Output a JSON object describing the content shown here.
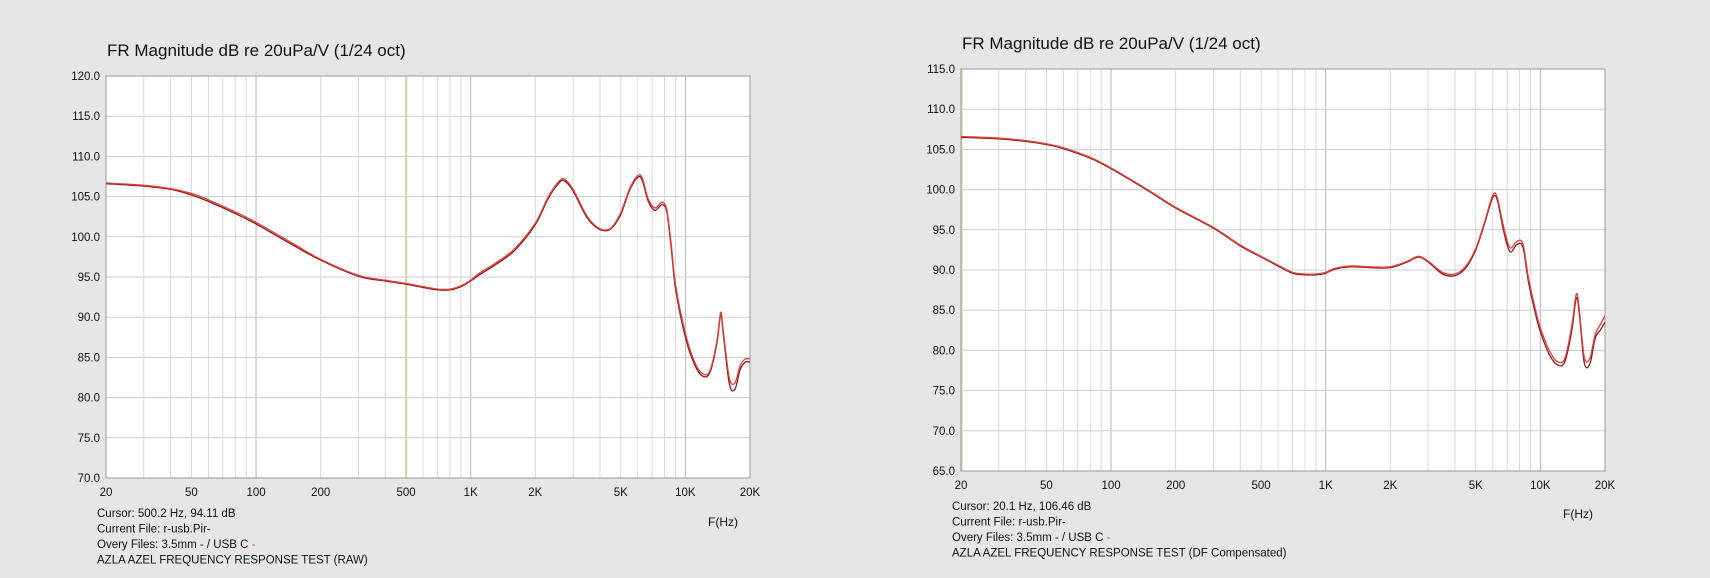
{
  "chart_data": [
    {
      "type": "line",
      "title": "FR Magnitude dB re 20uPa/V (1/24 oct)",
      "xlabel": "F(Hz)",
      "ylabel": "",
      "xscale": "log",
      "xlim": [
        20,
        20000
      ],
      "ylim": [
        70,
        120
      ],
      "y_ticks": [
        "70.0",
        "75.0",
        "80.0",
        "85.0",
        "90.0",
        "95.0",
        "100.0",
        "105.0",
        "110.0",
        "115.0",
        "120.0"
      ],
      "x_ticks": [
        {
          "v": 20,
          "label": "20"
        },
        {
          "v": 50,
          "label": "50"
        },
        {
          "v": 100,
          "label": "100"
        },
        {
          "v": 200,
          "label": "200"
        },
        {
          "v": 500,
          "label": "500"
        },
        {
          "v": 1000,
          "label": "1K"
        },
        {
          "v": 2000,
          "label": "2K"
        },
        {
          "v": 5000,
          "label": "5K"
        },
        {
          "v": 10000,
          "label": "10K"
        },
        {
          "v": 20000,
          "label": "20K"
        }
      ],
      "grid": true,
      "cursor_x": 500.2,
      "cursor_color": "#c8d89a",
      "info": {
        "cursor": "Cursor: 500.2 Hz, 94.11 dB",
        "current_file": "Current File: r-usb.Pir-",
        "overlay_prefix": "Overy Files: 3.5mm - / USB C",
        "overlay_mark": " -",
        "caption": "AZLA AZEL FREQUENCY RESPONSE TEST (RAW)"
      },
      "series": [
        {
          "color": "#8b1a1a",
          "x": [
            20,
            30,
            40,
            50,
            60,
            80,
            100,
            150,
            200,
            300,
            400,
            500,
            600,
            700,
            800,
            900,
            1000,
            1100,
            1300,
            1600,
            2000,
            2300,
            2600,
            2750,
            3000,
            3500,
            4000,
            4500,
            5000,
            5500,
            6000,
            6300,
            6700,
            7200,
            7800,
            8200,
            8600,
            9000,
            10000,
            11000,
            12000,
            13000,
            14000,
            14600,
            15000,
            16000,
            17000,
            18000,
            19000,
            20000
          ],
          "y": [
            106.6,
            106.3,
            105.9,
            105.2,
            104.4,
            102.9,
            101.6,
            98.9,
            97.1,
            95.1,
            94.5,
            94.11,
            93.7,
            93.4,
            93.4,
            93.8,
            94.5,
            95.3,
            96.5,
            98.3,
            101.5,
            104.8,
            106.8,
            106.9,
            105.7,
            102.3,
            100.9,
            101.0,
            102.8,
            105.8,
            107.4,
            107.0,
            104.5,
            103.3,
            104.0,
            103.0,
            98.5,
            93.5,
            87.5,
            84.2,
            82.7,
            83.1,
            86.6,
            90.3,
            88.0,
            81.8,
            81.0,
            83.5,
            84.4,
            84.4
          ]
        },
        {
          "color": "#e0403a",
          "x": [
            20,
            30,
            40,
            50,
            60,
            80,
            100,
            150,
            200,
            300,
            400,
            500,
            600,
            700,
            800,
            900,
            1000,
            1100,
            1300,
            1600,
            2000,
            2300,
            2600,
            2750,
            3000,
            3500,
            4000,
            4500,
            5000,
            5500,
            6000,
            6300,
            6700,
            7200,
            7800,
            8200,
            8600,
            9000,
            10000,
            11000,
            12000,
            13000,
            14000,
            14600,
            15000,
            16000,
            17000,
            18000,
            19000,
            20000
          ],
          "y": [
            106.7,
            106.4,
            106.0,
            105.4,
            104.6,
            103.1,
            101.8,
            99.1,
            97.2,
            95.2,
            94.6,
            94.2,
            93.8,
            93.5,
            93.5,
            93.9,
            94.6,
            95.5,
            96.7,
            98.5,
            101.7,
            105.0,
            107.0,
            107.1,
            105.9,
            102.5,
            101.0,
            101.1,
            103.0,
            106.0,
            107.6,
            107.3,
            104.8,
            103.6,
            104.3,
            103.3,
            99.0,
            94.0,
            88.0,
            84.5,
            83.0,
            83.3,
            86.9,
            90.6,
            88.4,
            82.5,
            81.8,
            84.0,
            84.8,
            84.8
          ]
        }
      ]
    },
    {
      "type": "line",
      "title": "FR Magnitude dB re 20uPa/V (1/24 oct)",
      "xlabel": "F(Hz)",
      "ylabel": "",
      "xscale": "log",
      "xlim": [
        20,
        20000
      ],
      "ylim": [
        65,
        115
      ],
      "y_ticks": [
        "65.0",
        "70.0",
        "75.0",
        "80.0",
        "85.0",
        "90.0",
        "95.0",
        "100.0",
        "105.0",
        "110.0",
        "115.0"
      ],
      "x_ticks": [
        {
          "v": 20,
          "label": "20"
        },
        {
          "v": 50,
          "label": "50"
        },
        {
          "v": 100,
          "label": "100"
        },
        {
          "v": 200,
          "label": "200"
        },
        {
          "v": 500,
          "label": "500"
        },
        {
          "v": 1000,
          "label": "1K"
        },
        {
          "v": 2000,
          "label": "2K"
        },
        {
          "v": 5000,
          "label": "5K"
        },
        {
          "v": 10000,
          "label": "10K"
        },
        {
          "v": 20000,
          "label": "20K"
        }
      ],
      "grid": true,
      "cursor_x": 20.1,
      "cursor_color": "#c8d89a",
      "info": {
        "cursor": "Cursor: 20.1 Hz, 106.46 dB",
        "current_file": "Current File: r-usb.Pir-",
        "overlay_prefix": "Overy Files: 3.5mm - / USB C",
        "overlay_mark": " -",
        "caption": "AZLA AZEL FREQUENCY RESPONSE TEST (DF Compensated)"
      },
      "series": [
        {
          "color": "#8b1a1a",
          "x": [
            20,
            30,
            40,
            50,
            60,
            80,
            100,
            150,
            200,
            300,
            400,
            500,
            600,
            700,
            800,
            900,
            1000,
            1100,
            1300,
            1600,
            2000,
            2400,
            2700,
            3000,
            3500,
            4000,
            4500,
            5000,
            5500,
            6000,
            6300,
            6700,
            7200,
            7800,
            8300,
            8800,
            9500,
            10000,
            11000,
            12000,
            13000,
            14000,
            14700,
            15200,
            16000,
            17000,
            18000,
            19000,
            20000
          ],
          "y": [
            106.5,
            106.3,
            106.0,
            105.6,
            105.1,
            103.9,
            102.6,
            99.8,
            97.7,
            95.2,
            93.0,
            91.6,
            90.5,
            89.6,
            89.4,
            89.4,
            89.6,
            90.1,
            90.4,
            90.3,
            90.3,
            91.0,
            91.6,
            91.0,
            89.5,
            89.3,
            90.3,
            92.5,
            95.8,
            99.0,
            98.7,
            95.2,
            92.3,
            93.2,
            92.8,
            88.5,
            84.5,
            82.3,
            79.5,
            78.2,
            78.6,
            82.4,
            86.5,
            84.5,
            78.5,
            78.3,
            81.5,
            82.5,
            83.5
          ]
        },
        {
          "color": "#e0403a",
          "x": [
            20,
            30,
            40,
            50,
            60,
            80,
            100,
            150,
            200,
            300,
            400,
            500,
            600,
            700,
            800,
            900,
            1000,
            1100,
            1300,
            1600,
            2000,
            2400,
            2700,
            3000,
            3500,
            4000,
            4500,
            5000,
            5500,
            6000,
            6300,
            6700,
            7200,
            7800,
            8300,
            8800,
            9500,
            10000,
            11000,
            12000,
            13000,
            14000,
            14700,
            15200,
            16000,
            17000,
            18000,
            19000,
            20000
          ],
          "y": [
            106.6,
            106.4,
            106.1,
            105.7,
            105.2,
            104.0,
            102.7,
            99.9,
            97.8,
            95.3,
            93.1,
            91.7,
            90.6,
            89.7,
            89.5,
            89.5,
            89.7,
            90.2,
            90.5,
            90.4,
            90.4,
            91.1,
            91.7,
            91.1,
            89.7,
            89.5,
            90.5,
            92.7,
            96.0,
            99.3,
            99.0,
            95.7,
            92.8,
            93.6,
            93.2,
            89.0,
            85.0,
            82.8,
            80.0,
            78.6,
            79.0,
            83.0,
            87.0,
            85.0,
            79.2,
            79.0,
            82.0,
            83.2,
            84.3
          ]
        }
      ]
    }
  ]
}
